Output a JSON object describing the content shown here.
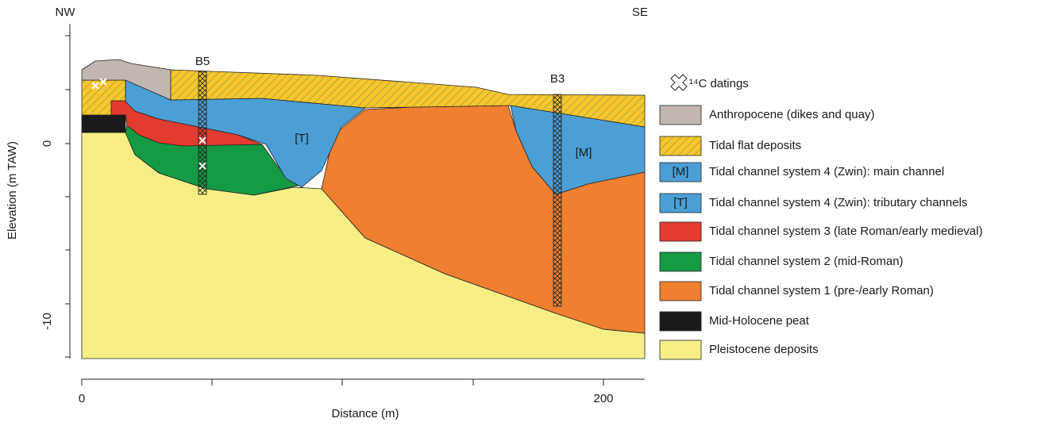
{
  "header": {
    "left": "NW",
    "right": "SE"
  },
  "boreholes": [
    {
      "label": "B5"
    },
    {
      "label": "B3"
    }
  ],
  "channel_labels": [
    "[T]",
    "[M]"
  ],
  "axes": {
    "x_label": "Distance (m)",
    "y_label": "Elevation (m TAW)",
    "x_ticks": [
      "0",
      "200"
    ],
    "y_ticks": [
      "0",
      "-10"
    ]
  },
  "legend": {
    "dating": "¹⁴C datings",
    "items": [
      {
        "label": "Anthropocene (dikes and quay)"
      },
      {
        "label": "Tidal flat deposits"
      },
      {
        "swatch_text": "[M]",
        "label": "Tidal channel system 4 (Zwin): main channel"
      },
      {
        "swatch_text": "[T]",
        "label": "Tidal channel system 4 (Zwin): tributary channels"
      },
      {
        "label": "Tidal channel system 3 (late Roman/early medieval)"
      },
      {
        "label": "Tidal channel system 2 (mid-Roman)"
      },
      {
        "label": "Tidal channel system 1 (pre-/early Roman)"
      },
      {
        "label": "Mid-Holocene peat"
      },
      {
        "label": "Pleistocene deposits"
      }
    ]
  }
}
